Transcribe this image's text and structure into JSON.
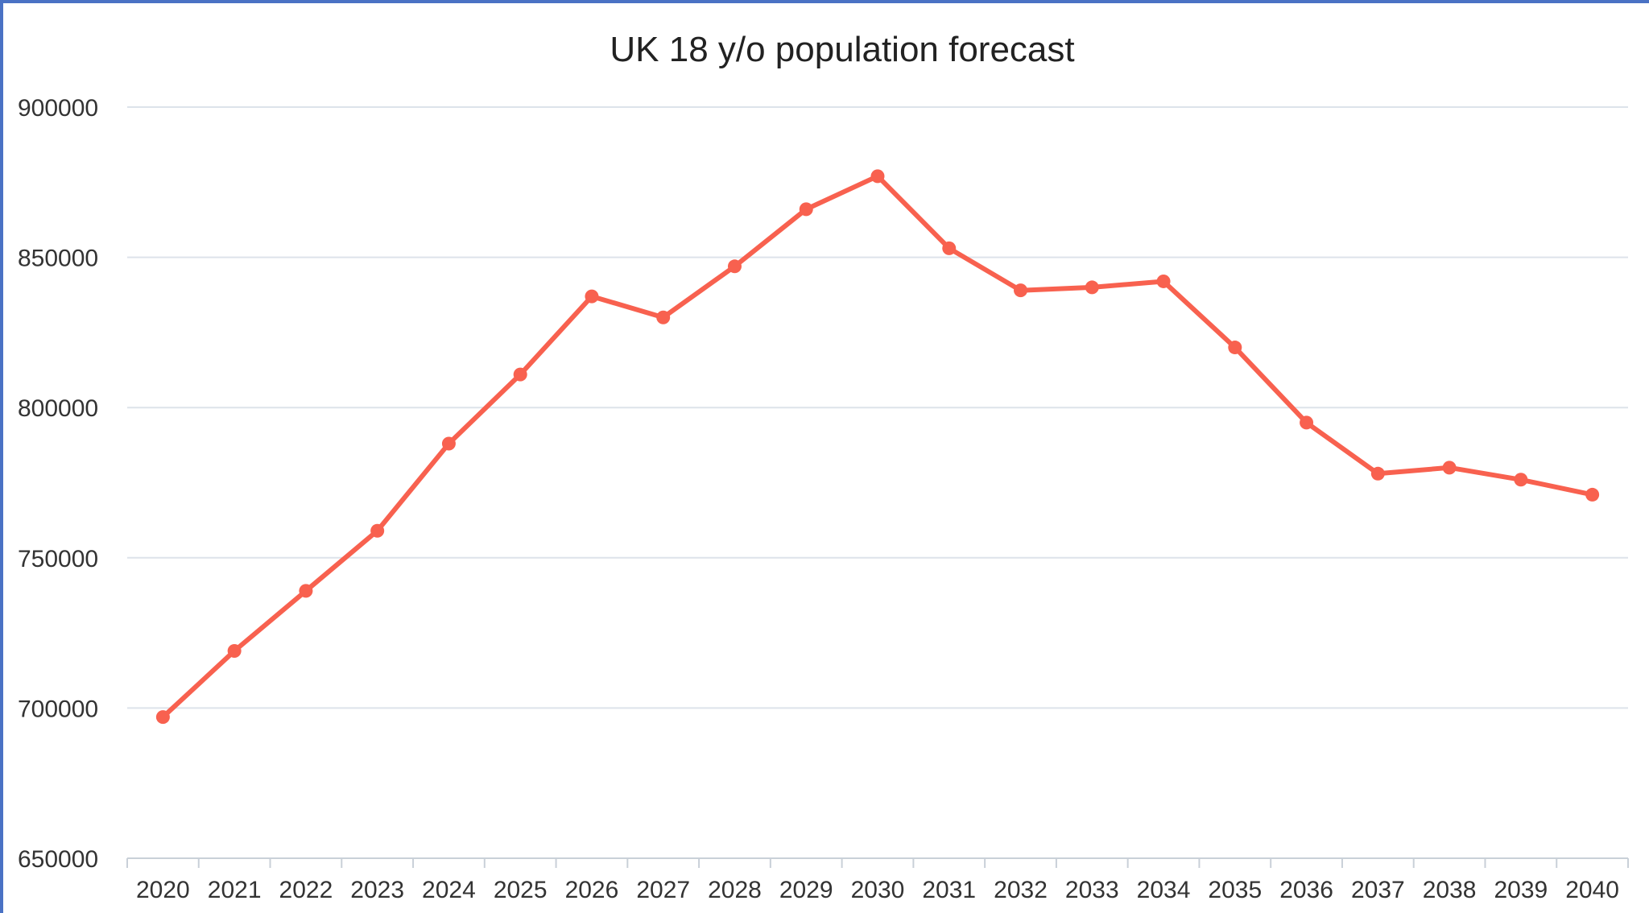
{
  "chart_data": {
    "type": "line",
    "title": "UK 18 y/o population forecast",
    "xlabel": "",
    "ylabel": "",
    "ylim": [
      650000,
      900000
    ],
    "yticks": [
      "900000",
      "850000",
      "800000",
      "750000",
      "700000",
      "650000"
    ],
    "categories": [
      "2020",
      "2021",
      "2022",
      "2023",
      "2024",
      "2025",
      "2026",
      "2027",
      "2028",
      "2029",
      "2030",
      "2031",
      "2032",
      "2033",
      "2034",
      "2035",
      "2036",
      "2037",
      "2038",
      "2039",
      "2040"
    ],
    "series": [
      {
        "values": [
          697000,
          719000,
          739000,
          759000,
          788000,
          811000,
          837000,
          830000,
          847000,
          866000,
          877000,
          853000,
          839000,
          840000,
          842000,
          820000,
          795000,
          778000,
          780000,
          776000,
          771000
        ]
      }
    ],
    "grid": true,
    "legend": "none",
    "colors": {
      "line": "#f8614f",
      "frame": "#4a72c4"
    }
  }
}
